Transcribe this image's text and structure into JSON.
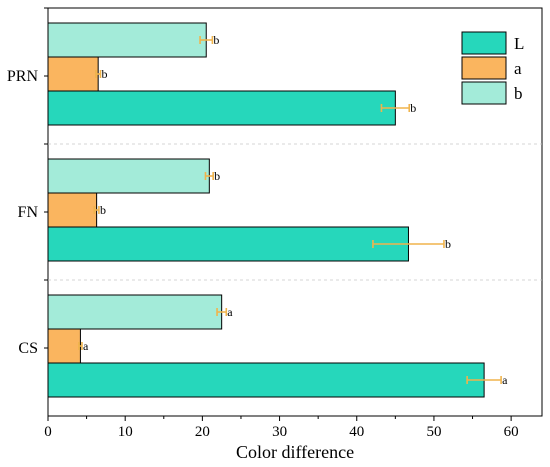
{
  "chart_data": {
    "type": "bar",
    "orientation": "horizontal",
    "categories": [
      "CS",
      "FN",
      "PRN"
    ],
    "series": [
      {
        "name": "L",
        "color": "#26d7bb",
        "values": [
          56.5,
          46.7,
          45.0
        ],
        "errors": [
          2.2,
          4.6,
          1.8
        ],
        "sig": [
          "a",
          "b",
          "b"
        ]
      },
      {
        "name": "a",
        "color": "#fab55f",
        "values": [
          4.2,
          6.3,
          6.5
        ],
        "errors": [
          0.2,
          0.3,
          0.3
        ],
        "sig": [
          "a",
          "b",
          "b"
        ]
      },
      {
        "name": "b",
        "color": "#a3ebd9",
        "values": [
          22.5,
          20.9,
          20.5
        ],
        "errors": [
          0.6,
          0.5,
          0.8
        ],
        "sig": [
          "a",
          "b",
          "b"
        ]
      }
    ],
    "xlabel": "Color difference",
    "ylabel": "",
    "xlim": [
      0,
      64
    ],
    "xticks": [
      0,
      10,
      20,
      30,
      40,
      50,
      60
    ],
    "grid": false,
    "legend_position": "top-right",
    "error_bar_color": "#f0b44c"
  }
}
